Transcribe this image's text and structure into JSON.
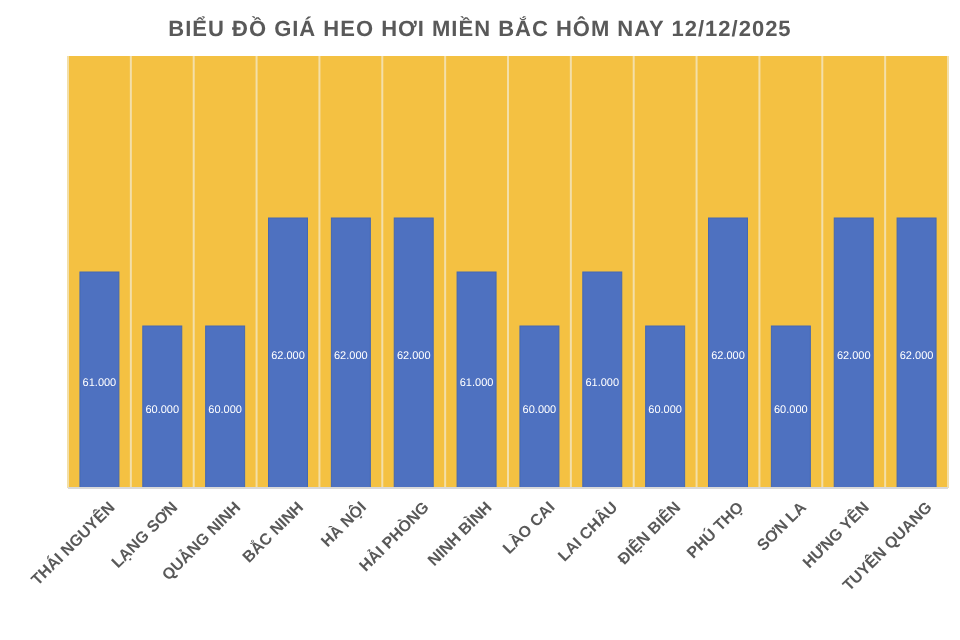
{
  "chart_data": {
    "type": "bar",
    "title": "BIỂU ĐỒ GIÁ HEO HƠI MIỀN BẮC HÔM NAY 12/12/2025",
    "categories": [
      "THÁI NGUYÊN",
      "LẠNG SƠN",
      "QUẢNG NINH",
      "BẮC NINH",
      "HÀ NỘI",
      "HẢI PHÒNG",
      "NINH BÌNH",
      "LÀO CAI",
      "LAI CHÂU",
      "ĐIỆN BIÊN",
      "PHÚ THỌ",
      "SƠN LA",
      "HƯNG YÊN",
      "TUYÊN QUANG"
    ],
    "values": [
      61000,
      60000,
      60000,
      62000,
      62000,
      62000,
      61000,
      60000,
      61000,
      60000,
      62000,
      60000,
      62000,
      62000
    ],
    "value_labels": [
      "61.000",
      "60.000",
      "60.000",
      "62.000",
      "62.000",
      "62.000",
      "61.000",
      "60.000",
      "61.000",
      "60.000",
      "62.000",
      "60.000",
      "62.000",
      "62.000"
    ],
    "color": "#4e71c0",
    "ylim": [
      57000,
      65000
    ],
    "tick_labels": "x",
    "grid": "x"
  }
}
